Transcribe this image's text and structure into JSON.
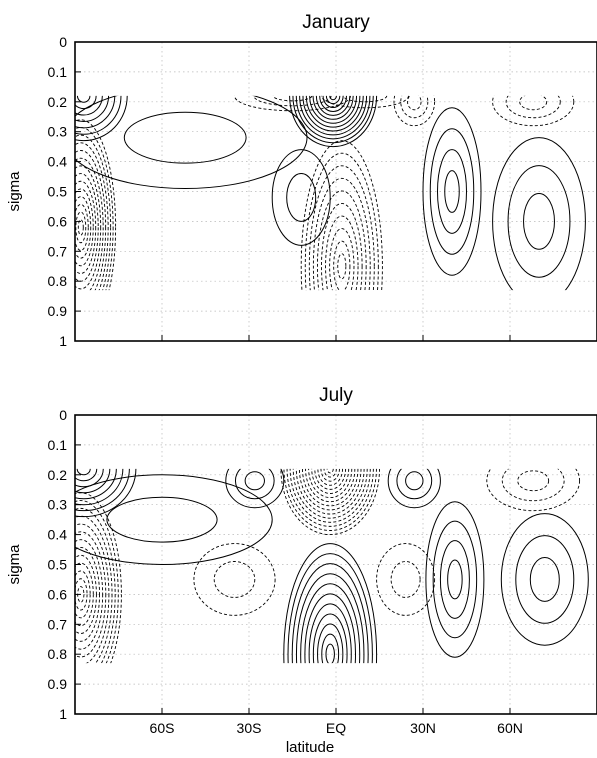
{
  "chart_data": [
    {
      "type": "contour",
      "title": "January",
      "xlabel": "",
      "ylabel": "sigma",
      "xlim": [
        -90,
        90
      ],
      "ylim": [
        1,
        0
      ],
      "x_ticks": [
        {
          "value": -60,
          "label": "60S"
        },
        {
          "value": -30,
          "label": "30S"
        },
        {
          "value": 0,
          "label": "EQ"
        },
        {
          "value": 30,
          "label": "30N"
        },
        {
          "value": 60,
          "label": "60N"
        }
      ],
      "y_ticks": [
        {
          "value": 0,
          "label": "0"
        },
        {
          "value": 0.1,
          "label": "0.1"
        },
        {
          "value": 0.2,
          "label": "0.2"
        },
        {
          "value": 0.3,
          "label": "0.3"
        },
        {
          "value": 0.4,
          "label": "0.4"
        },
        {
          "value": 0.5,
          "label": "0.5"
        },
        {
          "value": 0.6,
          "label": "0.6"
        },
        {
          "value": 0.7,
          "label": "0.7"
        },
        {
          "value": 0.8,
          "label": "0.8"
        },
        {
          "value": 0.9,
          "label": "0.9"
        },
        {
          "value": 1,
          "label": "1"
        }
      ],
      "data_sigma_range": [
        0.18,
        0.83
      ],
      "x_ticklabels_shown": false,
      "grid": true,
      "contour_groups": [
        {
          "sign": "positive",
          "count": 7,
          "style": "solid",
          "center": [
            -87,
            0.18
          ],
          "radius": [
            15,
            0.15
          ]
        },
        {
          "sign": "negative",
          "count": 14,
          "style": "dashed",
          "center": [
            -88,
            0.62
          ],
          "radius": [
            12,
            0.36
          ]
        },
        {
          "sign": "positive",
          "count": 2,
          "style": "solid",
          "center": [
            -52,
            0.32
          ],
          "radius": [
            42,
            0.17
          ]
        },
        {
          "sign": "positive",
          "count": 2,
          "style": "solid",
          "center": [
            -12,
            0.52
          ],
          "radius": [
            10,
            0.16
          ]
        },
        {
          "sign": "positive",
          "count": 13,
          "style": "solid",
          "center": [
            -1,
            0.18
          ],
          "radius": [
            15,
            0.17
          ]
        },
        {
          "sign": "negative",
          "count": 10,
          "style": "dashed",
          "center": [
            2,
            0.75
          ],
          "radius": [
            14,
            0.42
          ]
        },
        {
          "sign": "negative",
          "count": 3,
          "style": "dashed",
          "center": [
            -15,
            0.18
          ],
          "radius": [
            20,
            0.05
          ]
        },
        {
          "sign": "negative",
          "count": 2,
          "style": "dashed",
          "center": [
            10,
            0.18
          ],
          "radius": [
            15,
            0.04
          ]
        },
        {
          "sign": "positive",
          "count": 4,
          "style": "solid",
          "center": [
            40,
            0.5
          ],
          "radius": [
            10,
            0.28
          ]
        },
        {
          "sign": "negative",
          "count": 3,
          "style": "dashed",
          "center": [
            27,
            0.2
          ],
          "radius": [
            7,
            0.08
          ]
        },
        {
          "sign": "negative",
          "count": 3,
          "style": "dashed",
          "center": [
            68,
            0.2
          ],
          "radius": [
            14,
            0.08
          ]
        },
        {
          "sign": "positive",
          "count": 3,
          "style": "solid",
          "center": [
            70,
            0.6
          ],
          "radius": [
            16,
            0.28
          ]
        }
      ]
    },
    {
      "type": "contour",
      "title": "July",
      "xlabel": "latitude",
      "ylabel": "sigma",
      "xlim": [
        -90,
        90
      ],
      "ylim": [
        1,
        0
      ],
      "x_ticks": [
        {
          "value": -60,
          "label": "60S"
        },
        {
          "value": -30,
          "label": "30S"
        },
        {
          "value": 0,
          "label": "EQ"
        },
        {
          "value": 30,
          "label": "30N"
        },
        {
          "value": 60,
          "label": "60N"
        }
      ],
      "y_ticks": [
        {
          "value": 0,
          "label": "0"
        },
        {
          "value": 0.1,
          "label": "0.1"
        },
        {
          "value": 0.2,
          "label": "0.2"
        },
        {
          "value": 0.3,
          "label": "0.3"
        },
        {
          "value": 0.4,
          "label": "0.4"
        },
        {
          "value": 0.5,
          "label": "0.5"
        },
        {
          "value": 0.6,
          "label": "0.6"
        },
        {
          "value": 0.7,
          "label": "0.7"
        },
        {
          "value": 0.8,
          "label": "0.8"
        },
        {
          "value": 0.9,
          "label": "0.9"
        },
        {
          "value": 1,
          "label": "1"
        }
      ],
      "data_sigma_range": [
        0.18,
        0.83
      ],
      "x_ticklabels_shown": true,
      "grid": true,
      "contour_groups": [
        {
          "sign": "positive",
          "count": 8,
          "style": "solid",
          "center": [
            -87,
            0.18
          ],
          "radius": [
            18,
            0.16
          ]
        },
        {
          "sign": "negative",
          "count": 13,
          "style": "dashed",
          "center": [
            -88,
            0.6
          ],
          "radius": [
            14,
            0.34
          ]
        },
        {
          "sign": "positive",
          "count": 2,
          "style": "solid",
          "center": [
            -60,
            0.35
          ],
          "radius": [
            38,
            0.15
          ]
        },
        {
          "sign": "negative",
          "count": 16,
          "style": "dashed",
          "center": [
            -2,
            0.18
          ],
          "radius": [
            17,
            0.22
          ]
        },
        {
          "sign": "positive",
          "count": 11,
          "style": "solid",
          "center": [
            -2,
            0.8
          ],
          "radius": [
            16,
            0.37
          ]
        },
        {
          "sign": "positive",
          "count": 3,
          "style": "solid",
          "center": [
            -28,
            0.22
          ],
          "radius": [
            10,
            0.09
          ]
        },
        {
          "sign": "positive",
          "count": 3,
          "style": "solid",
          "center": [
            27,
            0.22
          ],
          "radius": [
            9,
            0.09
          ]
        },
        {
          "sign": "negative",
          "count": 2,
          "style": "dashed",
          "center": [
            -35,
            0.55
          ],
          "radius": [
            14,
            0.12
          ]
        },
        {
          "sign": "negative",
          "count": 2,
          "style": "dashed",
          "center": [
            24,
            0.55
          ],
          "radius": [
            10,
            0.12
          ]
        },
        {
          "sign": "positive",
          "count": 4,
          "style": "solid",
          "center": [
            41,
            0.55
          ],
          "radius": [
            10,
            0.26
          ]
        },
        {
          "sign": "negative",
          "count": 3,
          "style": "dashed",
          "center": [
            68,
            0.22
          ],
          "radius": [
            16,
            0.1
          ]
        },
        {
          "sign": "positive",
          "count": 3,
          "style": "solid",
          "center": [
            72,
            0.55
          ],
          "radius": [
            15,
            0.22
          ]
        }
      ]
    }
  ]
}
